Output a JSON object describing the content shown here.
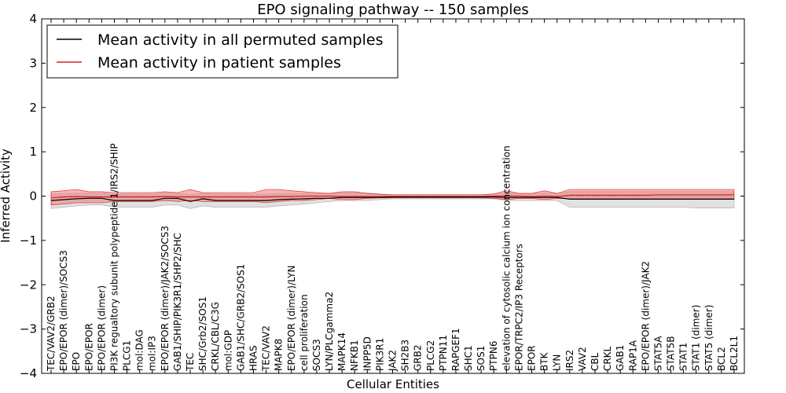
{
  "chart_data": {
    "type": "line",
    "title": "EPO signaling pathway -- 150 samples",
    "xlabel": "Cellular Entities",
    "ylabel": "Inferred Activity",
    "ylim": [
      -4,
      4
    ],
    "yticks": [
      -4,
      -3,
      -2,
      -1,
      0,
      1,
      2,
      3,
      4
    ],
    "ytick_labels": [
      "−4",
      "−3",
      "−2",
      "−1",
      "0",
      "1",
      "2",
      "3",
      "4"
    ],
    "grid": false,
    "legend_position": "top-left",
    "colors": {
      "permuted_line": "#000000",
      "permuted_band": "#c8c8c8",
      "patient_line": "#d62020",
      "patient_band": "#f08080",
      "zero_line": "#888888"
    },
    "categories": [
      "TEC/VAV2/GRB2",
      "EPO/EPOR (dimer)/SOCS3",
      "EPO",
      "EPO/EPOR",
      "EPO/EPOR (dimer)",
      "PI3K regualtory subunit polypeptide 1/IRS2/SHIP",
      "PLCG1",
      "mol:DAG",
      "mol:IP3",
      "EPO/EPOR (dimer)/JAK2/SOCS3",
      "GAB1/SHIP/PIK3R1/SHP2/SHC",
      "TEC",
      "SHC/Grb2/SOS1",
      "CRKL/CBL/C3G",
      "mol:GDP",
      "GAB1/SHC/GRB2/SOS1",
      "HRAS",
      "TEC/VAV2",
      "MAPK8",
      "EPO/EPOR (dimer)/LYN",
      "cell proliferation",
      "SOCS3",
      "LYN/PLCgamma2",
      "MAPK14",
      "NFKB1",
      "INPP5D",
      "PIK3R1",
      "JAK2",
      "SH2B3",
      "GRB2",
      "PLCG2",
      "PTPN11",
      "RAPGEF1",
      "SHC1",
      "SOS1",
      "PTPN6",
      "elevation of cytosolic calcium ion concentration",
      "EPOR/TRPC2/IP3 Receptors",
      "EPOR",
      "BTK",
      "LYN",
      "IRS2",
      "VAV2",
      "CBL",
      "CRKL",
      "GAB1",
      "RAP1A",
      "EPO/EPOR (dimer)/JAK2",
      "STAT5A",
      "STAT5B",
      "STAT1",
      "STAT1 (dimer)",
      "STAT5 (dimer)",
      "BCL2",
      "BCL2L1"
    ],
    "series": [
      {
        "name": "Mean activity in all permuted samples",
        "values": [
          -0.1,
          -0.08,
          -0.06,
          -0.05,
          -0.05,
          -0.1,
          -0.1,
          -0.1,
          -0.1,
          -0.05,
          -0.05,
          -0.12,
          -0.06,
          -0.1,
          -0.1,
          -0.1,
          -0.1,
          -0.1,
          -0.08,
          -0.07,
          -0.06,
          -0.05,
          -0.05,
          -0.03,
          -0.03,
          -0.03,
          -0.03,
          -0.02,
          -0.02,
          -0.02,
          -0.02,
          -0.02,
          -0.02,
          -0.02,
          -0.02,
          -0.02,
          -0.03,
          -0.03,
          -0.03,
          -0.03,
          -0.03,
          -0.07,
          -0.07,
          -0.07,
          -0.07,
          -0.07,
          -0.07,
          -0.07,
          -0.07,
          -0.07,
          -0.07,
          -0.07,
          -0.07,
          -0.07,
          -0.07
        ],
        "lower": [
          -0.28,
          -0.25,
          -0.22,
          -0.2,
          -0.2,
          -0.25,
          -0.25,
          -0.25,
          -0.25,
          -0.2,
          -0.2,
          -0.28,
          -0.22,
          -0.25,
          -0.25,
          -0.25,
          -0.25,
          -0.25,
          -0.22,
          -0.2,
          -0.18,
          -0.15,
          -0.12,
          -0.1,
          -0.1,
          -0.1,
          -0.08,
          -0.06,
          -0.06,
          -0.06,
          -0.06,
          -0.06,
          -0.06,
          -0.06,
          -0.06,
          -0.06,
          -0.1,
          -0.1,
          -0.1,
          -0.1,
          -0.1,
          -0.25,
          -0.25,
          -0.25,
          -0.25,
          -0.25,
          -0.25,
          -0.25,
          -0.25,
          -0.25,
          -0.25,
          -0.27,
          -0.27,
          -0.27,
          -0.27
        ],
        "upper": [
          0.05,
          0.05,
          0.06,
          0.06,
          0.06,
          0.04,
          0.04,
          0.04,
          0.04,
          0.06,
          0.06,
          0.03,
          0.06,
          0.04,
          0.04,
          0.04,
          0.04,
          0.04,
          0.05,
          0.05,
          0.06,
          0.06,
          0.06,
          0.07,
          0.07,
          0.07,
          0.05,
          0.03,
          0.03,
          0.03,
          0.03,
          0.03,
          0.03,
          0.03,
          0.03,
          0.03,
          0.06,
          0.06,
          0.06,
          0.06,
          0.06,
          0.1,
          0.1,
          0.1,
          0.1,
          0.1,
          0.1,
          0.1,
          0.1,
          0.1,
          0.1,
          0.1,
          0.1,
          0.1,
          0.1
        ]
      },
      {
        "name": "Mean activity in patient samples",
        "values": [
          -0.04,
          -0.02,
          -0.01,
          -0.02,
          -0.02,
          -0.02,
          -0.02,
          -0.02,
          -0.02,
          -0.01,
          -0.02,
          -0.02,
          -0.02,
          -0.02,
          -0.02,
          -0.02,
          -0.02,
          -0.02,
          -0.01,
          -0.01,
          0.0,
          0.0,
          0.0,
          -0.01,
          -0.01,
          -0.01,
          -0.01,
          -0.01,
          -0.01,
          -0.01,
          -0.01,
          -0.01,
          -0.01,
          -0.01,
          -0.01,
          0.0,
          0.0,
          0.0,
          -0.01,
          0.0,
          -0.01,
          0.02,
          0.02,
          0.02,
          0.02,
          0.02,
          0.02,
          0.02,
          0.03,
          0.03,
          0.03,
          0.03,
          0.03,
          0.03,
          0.03
        ],
        "lower": [
          -0.2,
          -0.18,
          -0.15,
          -0.15,
          -0.15,
          -0.12,
          -0.12,
          -0.12,
          -0.12,
          -0.1,
          -0.12,
          -0.1,
          -0.12,
          -0.12,
          -0.12,
          -0.12,
          -0.12,
          -0.15,
          -0.12,
          -0.1,
          -0.1,
          -0.08,
          -0.05,
          -0.08,
          -0.08,
          -0.05,
          -0.04,
          -0.04,
          -0.04,
          -0.04,
          -0.04,
          -0.04,
          -0.04,
          -0.04,
          -0.04,
          -0.05,
          -0.08,
          -0.05,
          -0.05,
          -0.08,
          -0.05,
          -0.06,
          -0.06,
          -0.06,
          -0.06,
          -0.06,
          -0.06,
          -0.06,
          -0.06,
          -0.06,
          -0.06,
          -0.06,
          -0.06,
          -0.06,
          -0.06
        ],
        "upper": [
          0.1,
          0.12,
          0.15,
          0.1,
          0.1,
          0.08,
          0.08,
          0.08,
          0.08,
          0.1,
          0.08,
          0.15,
          0.08,
          0.08,
          0.08,
          0.08,
          0.08,
          0.15,
          0.15,
          0.12,
          0.1,
          0.08,
          0.06,
          0.1,
          0.1,
          0.06,
          0.04,
          0.03,
          0.03,
          0.03,
          0.03,
          0.03,
          0.03,
          0.03,
          0.03,
          0.05,
          0.12,
          0.06,
          0.06,
          0.12,
          0.06,
          0.15,
          0.15,
          0.15,
          0.15,
          0.15,
          0.15,
          0.15,
          0.15,
          0.15,
          0.15,
          0.15,
          0.15,
          0.15,
          0.15
        ]
      }
    ]
  }
}
